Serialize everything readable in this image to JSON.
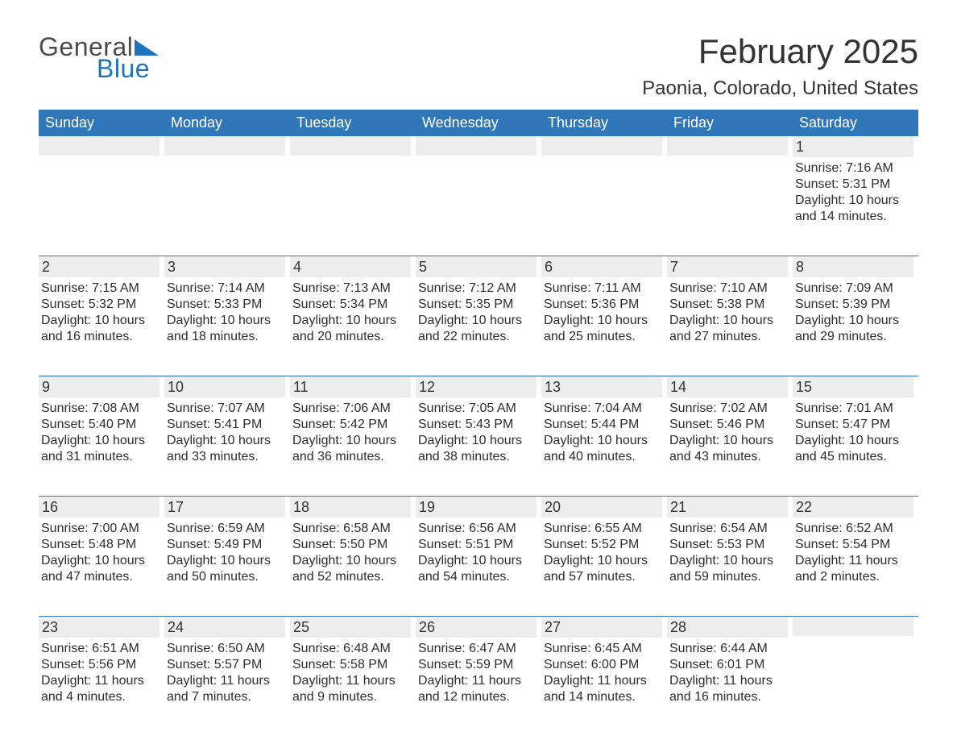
{
  "logo": {
    "text1": "General",
    "text2": "Blue",
    "text_color1": "#4a4a4a",
    "text_color2": "#1e74bc",
    "triangle_color": "#1e74bc"
  },
  "header": {
    "month_title": "February 2025",
    "location": "Paonia, Colorado, United States"
  },
  "calendar": {
    "type": "table",
    "header_bg": "#2f77b8",
    "header_text_color": "#ffffff",
    "week_divider_color": "#2f77b8",
    "daynum_band_bg": "#ededed",
    "body_text_color": "#2d2d2d",
    "background_color": "#ffffff",
    "columns": [
      "Sunday",
      "Monday",
      "Tuesday",
      "Wednesday",
      "Thursday",
      "Friday",
      "Saturday"
    ],
    "weeks": [
      [
        null,
        null,
        null,
        null,
        null,
        null,
        {
          "n": "1",
          "sunrise": "7:16 AM",
          "sunset": "5:31 PM",
          "daylight": "10 hours and 14 minutes."
        }
      ],
      [
        {
          "n": "2",
          "sunrise": "7:15 AM",
          "sunset": "5:32 PM",
          "daylight": "10 hours and 16 minutes."
        },
        {
          "n": "3",
          "sunrise": "7:14 AM",
          "sunset": "5:33 PM",
          "daylight": "10 hours and 18 minutes."
        },
        {
          "n": "4",
          "sunrise": "7:13 AM",
          "sunset": "5:34 PM",
          "daylight": "10 hours and 20 minutes."
        },
        {
          "n": "5",
          "sunrise": "7:12 AM",
          "sunset": "5:35 PM",
          "daylight": "10 hours and 22 minutes."
        },
        {
          "n": "6",
          "sunrise": "7:11 AM",
          "sunset": "5:36 PM",
          "daylight": "10 hours and 25 minutes."
        },
        {
          "n": "7",
          "sunrise": "7:10 AM",
          "sunset": "5:38 PM",
          "daylight": "10 hours and 27 minutes."
        },
        {
          "n": "8",
          "sunrise": "7:09 AM",
          "sunset": "5:39 PM",
          "daylight": "10 hours and 29 minutes."
        }
      ],
      [
        {
          "n": "9",
          "sunrise": "7:08 AM",
          "sunset": "5:40 PM",
          "daylight": "10 hours and 31 minutes."
        },
        {
          "n": "10",
          "sunrise": "7:07 AM",
          "sunset": "5:41 PM",
          "daylight": "10 hours and 33 minutes."
        },
        {
          "n": "11",
          "sunrise": "7:06 AM",
          "sunset": "5:42 PM",
          "daylight": "10 hours and 36 minutes."
        },
        {
          "n": "12",
          "sunrise": "7:05 AM",
          "sunset": "5:43 PM",
          "daylight": "10 hours and 38 minutes."
        },
        {
          "n": "13",
          "sunrise": "7:04 AM",
          "sunset": "5:44 PM",
          "daylight": "10 hours and 40 minutes."
        },
        {
          "n": "14",
          "sunrise": "7:02 AM",
          "sunset": "5:46 PM",
          "daylight": "10 hours and 43 minutes."
        },
        {
          "n": "15",
          "sunrise": "7:01 AM",
          "sunset": "5:47 PM",
          "daylight": "10 hours and 45 minutes."
        }
      ],
      [
        {
          "n": "16",
          "sunrise": "7:00 AM",
          "sunset": "5:48 PM",
          "daylight": "10 hours and 47 minutes."
        },
        {
          "n": "17",
          "sunrise": "6:59 AM",
          "sunset": "5:49 PM",
          "daylight": "10 hours and 50 minutes."
        },
        {
          "n": "18",
          "sunrise": "6:58 AM",
          "sunset": "5:50 PM",
          "daylight": "10 hours and 52 minutes."
        },
        {
          "n": "19",
          "sunrise": "6:56 AM",
          "sunset": "5:51 PM",
          "daylight": "10 hours and 54 minutes."
        },
        {
          "n": "20",
          "sunrise": "6:55 AM",
          "sunset": "5:52 PM",
          "daylight": "10 hours and 57 minutes."
        },
        {
          "n": "21",
          "sunrise": "6:54 AM",
          "sunset": "5:53 PM",
          "daylight": "10 hours and 59 minutes."
        },
        {
          "n": "22",
          "sunrise": "6:52 AM",
          "sunset": "5:54 PM",
          "daylight": "11 hours and 2 minutes."
        }
      ],
      [
        {
          "n": "23",
          "sunrise": "6:51 AM",
          "sunset": "5:56 PM",
          "daylight": "11 hours and 4 minutes."
        },
        {
          "n": "24",
          "sunrise": "6:50 AM",
          "sunset": "5:57 PM",
          "daylight": "11 hours and 7 minutes."
        },
        {
          "n": "25",
          "sunrise": "6:48 AM",
          "sunset": "5:58 PM",
          "daylight": "11 hours and 9 minutes."
        },
        {
          "n": "26",
          "sunrise": "6:47 AM",
          "sunset": "5:59 PM",
          "daylight": "11 hours and 12 minutes."
        },
        {
          "n": "27",
          "sunrise": "6:45 AM",
          "sunset": "6:00 PM",
          "daylight": "11 hours and 14 minutes."
        },
        {
          "n": "28",
          "sunrise": "6:44 AM",
          "sunset": "6:01 PM",
          "daylight": "11 hours and 16 minutes."
        },
        null
      ]
    ]
  }
}
